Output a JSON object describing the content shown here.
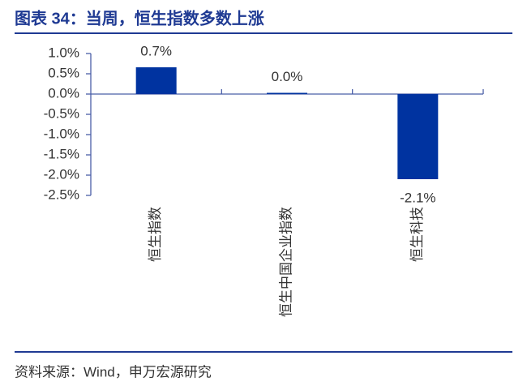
{
  "chart_data": {
    "type": "bar",
    "title": "图表 34：当周，恒生指数多数上涨",
    "source": "资料来源：Wind，申万宏源研究",
    "categories": [
      "恒生指数",
      "恒生中国企业指数",
      "恒生科技"
    ],
    "values": [
      0.66,
      0.03,
      -2.1
    ],
    "value_labels": [
      "0.7%",
      "0.0%",
      "-2.1%"
    ],
    "color": "#0033a0",
    "ylim": [
      -2.5,
      1.0
    ],
    "yticks": [
      {
        "value": 1.0,
        "label": "1.0%"
      },
      {
        "value": 0.5,
        "label": "0.5%"
      },
      {
        "value": 0,
        "label": "0.0%"
      },
      {
        "value": -0.5,
        "label": "-0.5%"
      },
      {
        "value": -1.0,
        "label": "-1.0%"
      },
      {
        "value": -1.5,
        "label": "-1.5%"
      },
      {
        "value": -2.0,
        "label": "-2.0%"
      },
      {
        "value": -2.5,
        "label": "-2.5%"
      }
    ],
    "grid": false
  }
}
